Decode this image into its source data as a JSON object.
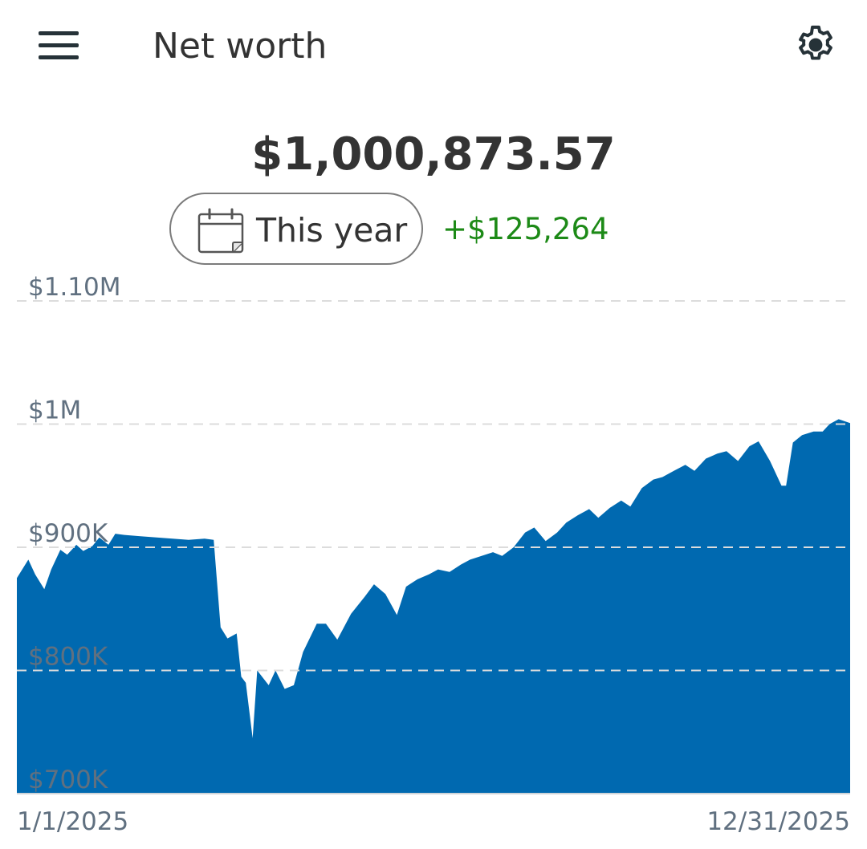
{
  "header": {
    "menu_icon": "hamburger-menu-icon",
    "title": "Net worth",
    "settings_icon": "gear-icon"
  },
  "summary": {
    "total": "$1,000,873.57",
    "range_icon": "calendar-icon",
    "range_label": "This year",
    "change": "+$125,264"
  },
  "colors": {
    "area_fill": "#0069b0",
    "change_positive": "#1d8a17",
    "text": "#333333",
    "tick_text": "#607080",
    "grid": "#dcdcdc"
  },
  "chart_data": {
    "type": "area",
    "series": [
      {
        "points": [
          [
            "2025-01-01",
            875000
          ],
          [
            "2025-01-06",
            890000
          ],
          [
            "2025-01-09",
            878000
          ],
          [
            "2025-01-13",
            866000
          ],
          [
            "2025-01-16",
            882000
          ],
          [
            "2025-01-20",
            898000
          ],
          [
            "2025-01-23",
            894000
          ],
          [
            "2025-01-27",
            902000
          ],
          [
            "2025-01-30",
            897000
          ],
          [
            "2025-02-03",
            901000
          ],
          [
            "2025-02-06",
            908000
          ],
          [
            "2025-02-10",
            902000
          ],
          [
            "2025-02-13",
            911000
          ],
          [
            "2025-02-17",
            910000
          ],
          [
            "2025-02-24",
            909000
          ],
          [
            "2025-03-03",
            908000
          ],
          [
            "2025-03-10",
            907000
          ],
          [
            "2025-03-17",
            906000
          ],
          [
            "2025-03-24",
            907000
          ],
          [
            "2025-03-28",
            906000
          ],
          [
            "2025-03-31",
            835000
          ],
          [
            "2025-04-03",
            826000
          ],
          [
            "2025-04-07",
            830000
          ],
          [
            "2025-04-09",
            795000
          ],
          [
            "2025-04-11",
            790000
          ],
          [
            "2025-04-14",
            745000
          ],
          [
            "2025-04-16",
            800000
          ],
          [
            "2025-04-21",
            788000
          ],
          [
            "2025-04-24",
            800000
          ],
          [
            "2025-04-28",
            785000
          ],
          [
            "2025-05-02",
            788000
          ],
          [
            "2025-05-06",
            815000
          ],
          [
            "2025-05-12",
            838000
          ],
          [
            "2025-05-16",
            838000
          ],
          [
            "2025-05-21",
            825000
          ],
          [
            "2025-05-27",
            846000
          ],
          [
            "2025-06-02",
            860000
          ],
          [
            "2025-06-06",
            870000
          ],
          [
            "2025-06-11",
            862000
          ],
          [
            "2025-06-16",
            845000
          ],
          [
            "2025-06-20",
            868000
          ],
          [
            "2025-06-25",
            874000
          ],
          [
            "2025-06-30",
            878000
          ],
          [
            "2025-07-04",
            882000
          ],
          [
            "2025-07-09",
            880000
          ],
          [
            "2025-07-14",
            886000
          ],
          [
            "2025-07-18",
            890000
          ],
          [
            "2025-07-23",
            893000
          ],
          [
            "2025-07-28",
            896000
          ],
          [
            "2025-08-01",
            893000
          ],
          [
            "2025-08-06",
            900000
          ],
          [
            "2025-08-11",
            912000
          ],
          [
            "2025-08-15",
            916000
          ],
          [
            "2025-08-20",
            905000
          ],
          [
            "2025-08-25",
            912000
          ],
          [
            "2025-08-29",
            920000
          ],
          [
            "2025-09-03",
            926000
          ],
          [
            "2025-09-08",
            931000
          ],
          [
            "2025-09-12",
            924000
          ],
          [
            "2025-09-17",
            932000
          ],
          [
            "2025-09-22",
            938000
          ],
          [
            "2025-09-26",
            933000
          ],
          [
            "2025-10-01",
            948000
          ],
          [
            "2025-10-06",
            955000
          ],
          [
            "2025-10-10",
            957000
          ],
          [
            "2025-10-15",
            962000
          ],
          [
            "2025-10-20",
            967000
          ],
          [
            "2025-10-24",
            962000
          ],
          [
            "2025-10-29",
            972000
          ],
          [
            "2025-11-03",
            976000
          ],
          [
            "2025-11-07",
            978000
          ],
          [
            "2025-11-12",
            970000
          ],
          [
            "2025-11-17",
            982000
          ],
          [
            "2025-11-21",
            986000
          ],
          [
            "2025-11-26",
            970000
          ],
          [
            "2025-12-01",
            950000
          ],
          [
            "2025-12-03",
            950000
          ],
          [
            "2025-12-06",
            985000
          ],
          [
            "2025-12-10",
            991000
          ],
          [
            "2025-12-15",
            994000
          ],
          [
            "2025-12-19",
            994000
          ],
          [
            "2025-12-22",
            1000000
          ],
          [
            "2025-12-26",
            1004000
          ],
          [
            "2025-12-31",
            1000874
          ]
        ]
      }
    ],
    "x_range": [
      "2025-01-01",
      "2025-12-31"
    ],
    "x_tick_labels": [
      "1/1/2025",
      "12/31/2025"
    ],
    "ylim": [
      700000,
      1100000
    ],
    "y_ticks": [
      700000,
      800000,
      900000,
      1000000,
      1100000
    ],
    "y_tick_labels": [
      "$700K",
      "$800K",
      "$900K",
      "$1M",
      "$1.10M"
    ],
    "grid": "horizontal dashed",
    "title": "",
    "xlabel": "",
    "ylabel": ""
  }
}
